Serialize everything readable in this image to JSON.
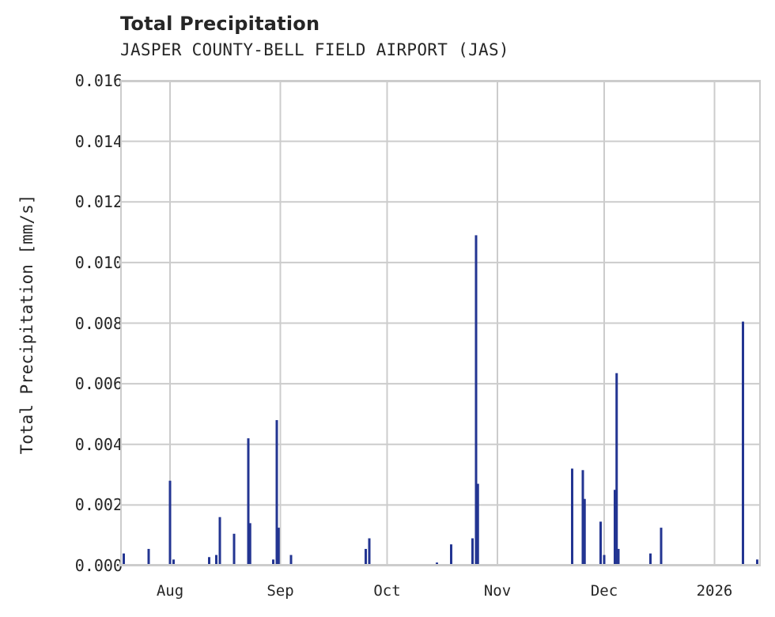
{
  "chart": {
    "title": "Total Precipitation",
    "subtitle": "JASPER COUNTY-BELL FIELD AIRPORT (JAS)",
    "ylabel": "Total Precipitation [mm/s]",
    "yticks": [
      "0.000",
      "0.002",
      "0.004",
      "0.006",
      "0.008",
      "0.010",
      "0.012",
      "0.014",
      "0.016"
    ],
    "xticks": [
      "Aug",
      "Sep",
      "Oct",
      "Nov",
      "Dec",
      "2026"
    ]
  },
  "colors": {
    "bar": "#233592",
    "grid": "#cccccc",
    "text": "#262626"
  },
  "chart_data": {
    "type": "bar",
    "title": "Total Precipitation",
    "subtitle": "JASPER COUNTY-BELL FIELD AIRPORT (JAS)",
    "xlabel": "",
    "ylabel": "Total Precipitation [mm/s]",
    "ylim": [
      0,
      0.016
    ],
    "xlim": [
      "2025-07-18",
      "2026-01-14"
    ],
    "grid": true,
    "legend": null,
    "x_tick_labels": [
      "Aug",
      "Sep",
      "Oct",
      "Nov",
      "Dec",
      "2026"
    ],
    "y_tick_labels": [
      "0.000",
      "0.002",
      "0.004",
      "0.006",
      "0.008",
      "0.010",
      "0.012",
      "0.014",
      "0.016"
    ],
    "series": [
      {
        "name": "Total Precipitation",
        "points": [
          {
            "date": "2025-07-19",
            "value": 0.0004
          },
          {
            "date": "2025-07-26",
            "value": 0.00055
          },
          {
            "date": "2025-08-01",
            "value": 0.0028
          },
          {
            "date": "2025-08-02",
            "value": 0.0002
          },
          {
            "date": "2025-08-08",
            "value": 5e-05
          },
          {
            "date": "2025-08-12",
            "value": 0.00028
          },
          {
            "date": "2025-08-14",
            "value": 0.00035
          },
          {
            "date": "2025-08-15",
            "value": 0.0016
          },
          {
            "date": "2025-08-19",
            "value": 0.00105
          },
          {
            "date": "2025-08-23",
            "value": 0.0042
          },
          {
            "date": "2025-08-23T12",
            "value": 0.0014
          },
          {
            "date": "2025-08-30",
            "value": 0.0002
          },
          {
            "date": "2025-08-31",
            "value": 0.0048
          },
          {
            "date": "2025-08-31T12",
            "value": 0.00125
          },
          {
            "date": "2025-09-01",
            "value": 5e-05
          },
          {
            "date": "2025-09-04",
            "value": 0.00035
          },
          {
            "date": "2025-09-25",
            "value": 0.00055
          },
          {
            "date": "2025-09-26",
            "value": 0.0009
          },
          {
            "date": "2025-10-15",
            "value": 0.0001
          },
          {
            "date": "2025-10-19",
            "value": 0.0007
          },
          {
            "date": "2025-10-25",
            "value": 0.0009
          },
          {
            "date": "2025-10-26",
            "value": 0.0109
          },
          {
            "date": "2025-10-26T12",
            "value": 0.0027
          },
          {
            "date": "2025-11-22",
            "value": 0.0032
          },
          {
            "date": "2025-11-25",
            "value": 0.00315
          },
          {
            "date": "2025-11-25T12",
            "value": 0.0022
          },
          {
            "date": "2025-11-30",
            "value": 0.00145
          },
          {
            "date": "2025-12-01",
            "value": 0.00035
          },
          {
            "date": "2025-12-04",
            "value": 0.0025
          },
          {
            "date": "2025-12-04T12",
            "value": 0.00635
          },
          {
            "date": "2025-12-05",
            "value": 0.00055
          },
          {
            "date": "2025-12-08",
            "value": 5e-05
          },
          {
            "date": "2025-12-14",
            "value": 0.0004
          },
          {
            "date": "2025-12-17",
            "value": 0.00125
          },
          {
            "date": "2026-01-09",
            "value": 0.00805
          },
          {
            "date": "2026-01-13",
            "value": 0.0002
          }
        ]
      }
    ]
  }
}
